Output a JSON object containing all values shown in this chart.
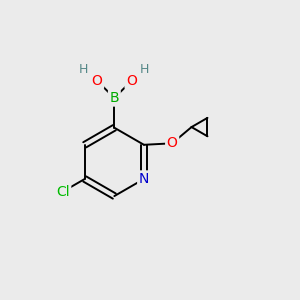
{
  "bg_color": "#ebebeb",
  "bond_color": "#000000",
  "atom_colors": {
    "B": "#00aa00",
    "O": "#ff0000",
    "H": "#558888",
    "N": "#0000cc",
    "Cl": "#00bb00",
    "C": "#000000"
  },
  "figsize": [
    3.0,
    3.0
  ],
  "dpi": 100
}
